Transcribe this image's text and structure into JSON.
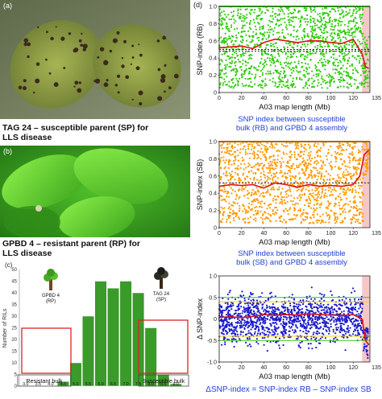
{
  "panel_a": {
    "label": "(a)",
    "caption_line1": "TAG 24 – susceptible parent (SP) for",
    "caption_line2": "LLS disease"
  },
  "panel_b": {
    "label": "(b)",
    "caption_line1": "GPBD 4 – resistant parent (RP) for",
    "caption_line2": "LLS disease"
  },
  "panel_d_label": "(d)",
  "blue_text_1_l1": "SNP index between susceptible",
  "blue_text_1_l2": "bulk (RB) and GPBD 4 assembly",
  "blue_text_2_l1": "SNP index between susceptible",
  "blue_text_2_l2": "bulk (SB) and GPBD 4 assembly",
  "bottom_formula": "ΔSNP-index = SNP-index RB – SNP-index SB",
  "colors": {
    "rb": "#33cc11",
    "sb": "#ff9900",
    "delta": "#1a1acc",
    "fit": "#dd1111",
    "hl": "#f7c7c7"
  },
  "chart_data": [
    {
      "type": "bar",
      "panel": "(c)",
      "ylabel": "Number of RILs",
      "ylim": [
        0,
        50
      ],
      "yticks": [
        "0",
        "5",
        "10",
        "15",
        "20",
        "25",
        "30",
        "35",
        "40",
        "45",
        "50"
      ],
      "categories": [
        "3.0",
        "3.5",
        "4.0",
        "4.5",
        "5.0",
        "5.5",
        "6.0",
        "6.5",
        "7.0",
        "7.5",
        "8.0",
        "8.5",
        "9.0"
      ],
      "values": [
        0,
        0,
        0,
        2,
        10,
        30,
        45,
        42,
        45,
        40,
        25,
        5,
        1
      ],
      "annotations": {
        "rp_label": "GPBD 4\n(RP)",
        "sp_label": "TAG 24\n(SP)",
        "resistant": "Resistant bulk",
        "susceptible": "Susceptible bulk"
      }
    },
    {
      "type": "scatter",
      "panel": "(d) top",
      "ylabel": "SNP-index (RB)",
      "xlabel": "A03 map length (Mb)",
      "xlim": [
        0,
        135
      ],
      "ylim": [
        0,
        1
      ],
      "xticks": [
        "0",
        "20",
        "40",
        "60",
        "80",
        "100",
        "120"
      ],
      "xtick_end": "135",
      "yticks": [
        "0",
        "0.2",
        "0.4",
        "0.6",
        "0.8",
        "1.0"
      ],
      "fit_line": {
        "x": [
          0,
          10,
          20,
          30,
          40,
          50,
          60,
          70,
          80,
          90,
          100,
          110,
          120,
          128,
          131,
          134
        ],
        "y": [
          0.52,
          0.53,
          0.54,
          0.51,
          0.58,
          0.62,
          0.6,
          0.58,
          0.6,
          0.6,
          0.58,
          0.57,
          0.62,
          0.45,
          0.3,
          0.28
        ]
      },
      "threshold_lines": [
        0.5,
        0.48,
        1.0
      ]
    },
    {
      "type": "scatter",
      "panel": "(d) middle",
      "ylabel": "SNP-index (SB)",
      "xlabel": "A03 map length (Mb)",
      "xlim": [
        0,
        135
      ],
      "ylim": [
        0,
        1
      ],
      "xticks": [
        "0",
        "20",
        "40",
        "60",
        "80",
        "100",
        "120"
      ],
      "xtick_end": "135",
      "yticks": [
        "0",
        "0.2",
        "0.4",
        "0.6",
        "0.8",
        "1.0"
      ],
      "fit_line": {
        "x": [
          0,
          10,
          20,
          30,
          40,
          50,
          60,
          70,
          80,
          90,
          100,
          110,
          120,
          126,
          130,
          134
        ],
        "y": [
          0.48,
          0.5,
          0.49,
          0.5,
          0.46,
          0.52,
          0.5,
          0.47,
          0.5,
          0.48,
          0.49,
          0.48,
          0.5,
          0.6,
          0.85,
          0.9
        ]
      },
      "threshold_lines": [
        0.52,
        1.0
      ]
    },
    {
      "type": "scatter",
      "panel": "(d) bottom",
      "ylabel": "Δ SNP-index",
      "xlabel": "A03 map length (Mb)",
      "xlim": [
        0,
        135
      ],
      "ylim": [
        -1,
        1
      ],
      "xticks": [
        "0",
        "20",
        "40",
        "60",
        "80",
        "100",
        "120"
      ],
      "xtick_end": "135",
      "yticks": [
        "-1.0",
        "-0.5",
        "0",
        "0.5",
        "1.0"
      ],
      "fit_line": {
        "x": [
          0,
          10,
          20,
          30,
          40,
          50,
          60,
          70,
          80,
          90,
          100,
          110,
          120,
          128,
          131,
          134
        ],
        "y": [
          0.04,
          0.05,
          0.03,
          0.06,
          0.1,
          0.08,
          0.1,
          0.09,
          0.12,
          0.1,
          0.09,
          0.08,
          0.1,
          0.0,
          -0.5,
          -0.6
        ]
      },
      "threshold_lines": [
        0.4,
        0.5,
        -0.4,
        -0.5
      ]
    }
  ]
}
